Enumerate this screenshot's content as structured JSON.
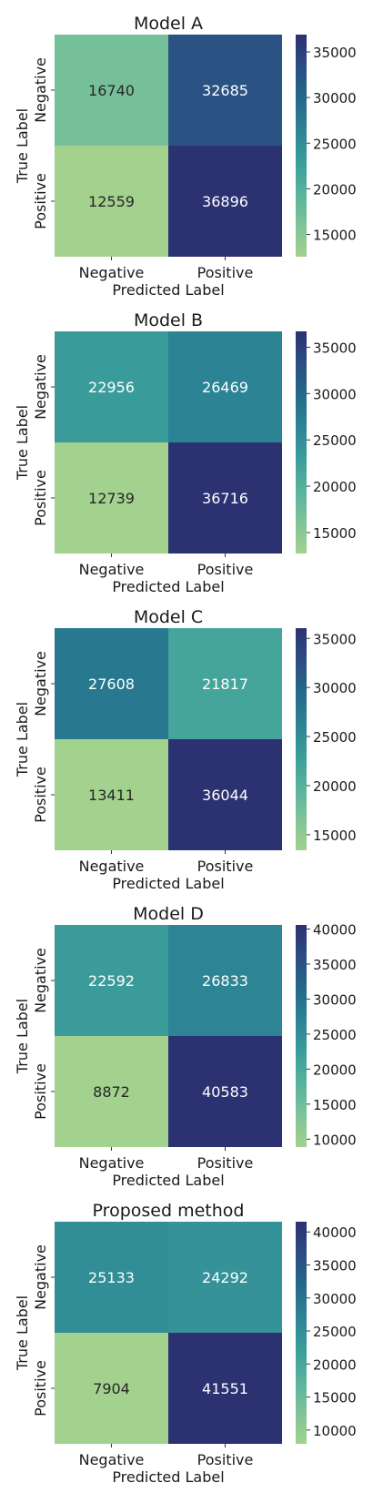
{
  "chart_data": [
    {
      "type": "heatmap",
      "title": "Model A",
      "xlabel": "Predicted Label",
      "ylabel": "True Label",
      "x_categories": [
        "Negative",
        "Positive"
      ],
      "y_categories": [
        "Negative",
        "Positive"
      ],
      "values": [
        [
          16740,
          32685
        ],
        [
          12559,
          36896
        ]
      ],
      "colorbar": {
        "min": 12559,
        "max": 36896,
        "ticks": [
          15000,
          20000,
          25000,
          30000,
          35000
        ]
      }
    },
    {
      "type": "heatmap",
      "title": "Model B",
      "xlabel": "Predicted Label",
      "ylabel": "True Label",
      "x_categories": [
        "Negative",
        "Positive"
      ],
      "y_categories": [
        "Negative",
        "Positive"
      ],
      "values": [
        [
          22956,
          26469
        ],
        [
          12739,
          36716
        ]
      ],
      "colorbar": {
        "min": 12739,
        "max": 36716,
        "ticks": [
          15000,
          20000,
          25000,
          30000,
          35000
        ]
      }
    },
    {
      "type": "heatmap",
      "title": "Model C",
      "xlabel": "Predicted Label",
      "ylabel": "True Label",
      "x_categories": [
        "Negative",
        "Positive"
      ],
      "y_categories": [
        "Negative",
        "Positive"
      ],
      "values": [
        [
          27608,
          21817
        ],
        [
          13411,
          36044
        ]
      ],
      "colorbar": {
        "min": 13411,
        "max": 36044,
        "ticks": [
          15000,
          20000,
          25000,
          30000,
          35000
        ]
      }
    },
    {
      "type": "heatmap",
      "title": "Model D",
      "xlabel": "Predicted Label",
      "ylabel": "True Label",
      "x_categories": [
        "Negative",
        "Positive"
      ],
      "y_categories": [
        "Negative",
        "Positive"
      ],
      "values": [
        [
          22592,
          26833
        ],
        [
          8872,
          40583
        ]
      ],
      "colorbar": {
        "min": 8872,
        "max": 40583,
        "ticks": [
          10000,
          15000,
          20000,
          25000,
          30000,
          35000,
          40000
        ]
      }
    },
    {
      "type": "heatmap",
      "title": "Proposed method",
      "xlabel": "Predicted Label",
      "ylabel": "True Label",
      "x_categories": [
        "Negative",
        "Positive"
      ],
      "y_categories": [
        "Negative",
        "Positive"
      ],
      "values": [
        [
          25133,
          24292
        ],
        [
          7904,
          41551
        ]
      ],
      "colorbar": {
        "min": 7904,
        "max": 41551,
        "ticks": [
          10000,
          15000,
          20000,
          25000,
          30000,
          35000,
          40000
        ]
      }
    }
  ],
  "colormap": {
    "name": "crest",
    "stops": [
      "#a3d18e",
      "#7ec398",
      "#56b39c",
      "#3a9c9a",
      "#2b8394",
      "#24698a",
      "#2c4d82",
      "#2c3172"
    ]
  },
  "text_colors": {
    "light_cell": "#262626",
    "dark_cell": "#ffffff"
  }
}
